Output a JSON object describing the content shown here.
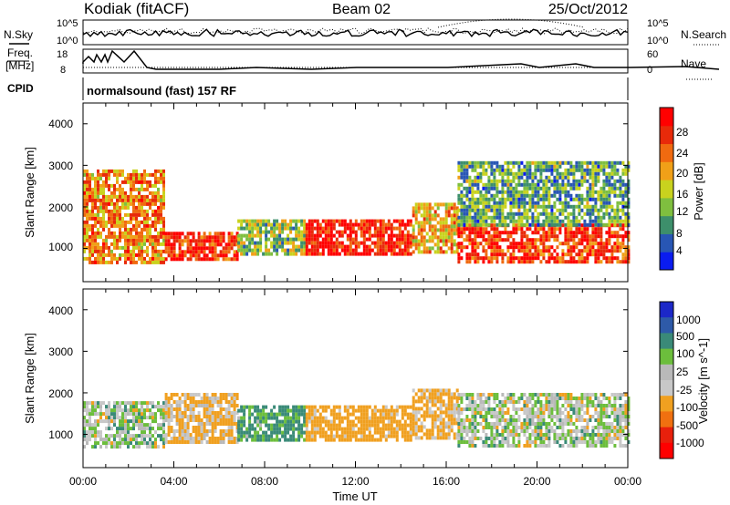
{
  "header": {
    "station": "Kodiak (fitACF)",
    "beam": "Beam 02",
    "date": "25/Oct/2012"
  },
  "top_panels": {
    "nsky_label": "N.Sky",
    "nsearch_label": "N.Search",
    "noise_ticks_left": [
      "10^5",
      "10^0"
    ],
    "noise_ticks_right": [
      "10^5",
      "10^0"
    ],
    "freq_label_1": "Freq.",
    "freq_label_2": "[MHz]",
    "freq_ticks": [
      "18",
      "8"
    ],
    "nave_ticks": [
      "60",
      "0"
    ],
    "nave_label": "Nave",
    "cpid_label": "CPID",
    "cpid_text": "normalsound (fast) 157 RF"
  },
  "colors": {
    "power_scale": [
      "#0a1cf0",
      "#2856b4",
      "#3d8f6b",
      "#7fbf3f",
      "#c9d21e",
      "#f0a018",
      "#f06a10",
      "#e82a0a",
      "#ff0000"
    ],
    "velocity_scale": [
      "#1c28c8",
      "#2e5aa8",
      "#3a8a78",
      "#6cbe3c",
      "#b9b9b9",
      "#c8c8c8",
      "#f0a020",
      "#f07010",
      "#e8200c",
      "#ff0000"
    ]
  },
  "chart_data": [
    {
      "type": "heatmap",
      "title": "Power",
      "ylabel": "Slant Range [km]",
      "xlabel": "Time UT",
      "xlim": [
        "00:00",
        "24:00"
      ],
      "ylim": [
        200,
        4500
      ],
      "x_tick_labels": [
        "00:00",
        "04:00",
        "08:00",
        "12:00",
        "16:00",
        "20:00",
        "00:00"
      ],
      "y_tick_labels": [
        "1000",
        "2000",
        "3000",
        "4000"
      ],
      "colorbar": {
        "label": "Power [dB]",
        "ticks": [
          "4",
          "8",
          "12",
          "16",
          "20",
          "24",
          "28"
        ],
        "range": [
          0,
          30
        ]
      },
      "regions": [
        {
          "t_start": 0.0,
          "t_end": 3.6,
          "r_min": 700,
          "r_max": 2900,
          "value": 20
        },
        {
          "t_start": 3.6,
          "t_end": 6.8,
          "r_min": 700,
          "r_max": 1400,
          "value": 26
        },
        {
          "t_start": 6.8,
          "t_end": 9.8,
          "r_min": 900,
          "r_max": 1700,
          "value": 13
        },
        {
          "t_start": 9.8,
          "t_end": 14.5,
          "r_min": 900,
          "r_max": 1700,
          "value": 27
        },
        {
          "t_start": 14.5,
          "t_end": 16.5,
          "r_min": 900,
          "r_max": 2100,
          "value": 18
        },
        {
          "t_start": 16.5,
          "t_end": 24.0,
          "r_min": 700,
          "r_max": 1600,
          "value": 25
        },
        {
          "t_start": 16.5,
          "t_end": 24.0,
          "r_min": 1600,
          "r_max": 3100,
          "value": 10
        }
      ]
    },
    {
      "type": "heatmap",
      "title": "Velocity",
      "ylabel": "Slant Range [km]",
      "xlabel": "Time UT",
      "xlim": [
        "00:00",
        "24:00"
      ],
      "ylim": [
        200,
        4500
      ],
      "x_tick_labels": [
        "00:00",
        "04:00",
        "08:00",
        "12:00",
        "16:00",
        "20:00",
        "00:00"
      ],
      "y_tick_labels": [
        "1000",
        "2000",
        "3000",
        "4000"
      ],
      "colorbar": {
        "label": "Velocity [m s^-1]",
        "ticks": [
          "1000",
          "500",
          "100",
          "25",
          "-25",
          "-100",
          "-500",
          "-1000"
        ]
      },
      "regions": [
        {
          "t_start": 0.0,
          "t_end": 3.6,
          "r_min": 700,
          "r_max": 1800,
          "value": 0
        },
        {
          "t_start": 3.6,
          "t_end": 6.8,
          "r_min": 800,
          "r_max": 2000,
          "value": -120
        },
        {
          "t_start": 6.8,
          "t_end": 9.8,
          "r_min": 900,
          "r_max": 1700,
          "value": 150
        },
        {
          "t_start": 9.8,
          "t_end": 14.5,
          "r_min": 900,
          "r_max": 1700,
          "value": -200
        },
        {
          "t_start": 14.5,
          "t_end": 16.5,
          "r_min": 900,
          "r_max": 2100,
          "value": -150
        },
        {
          "t_start": 16.5,
          "t_end": 24.0,
          "r_min": 700,
          "r_max": 2000,
          "value": 0
        }
      ]
    }
  ]
}
